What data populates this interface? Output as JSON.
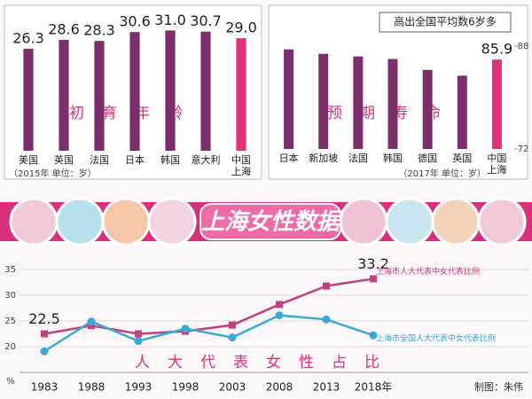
{
  "banner": "上海女性数据",
  "credit": "制图：朱伟",
  "chart_data": [
    {
      "type": "bar",
      "title": "初育年龄",
      "note": "（2015年 单位：岁）",
      "categories": [
        "美国",
        "英国",
        "法国",
        "日本",
        "韩国",
        "意大利",
        "中国\n上海"
      ],
      "values": [
        26.3,
        28.6,
        28.3,
        30.6,
        31.0,
        30.7,
        29.0
      ],
      "value_labels": [
        "26.3",
        "28.6",
        "28.3",
        "30.6",
        "31.0",
        "30.7",
        "29.0"
      ],
      "colors": [
        "#7b2d6c",
        "#7b2d6c",
        "#7b2d6c",
        "#7b2d6c",
        "#7b2d6c",
        "#7b2d6c",
        "#e2307c"
      ],
      "ylim": [
        0,
        32
      ]
    },
    {
      "type": "bar",
      "title": "预期寿命",
      "note": "（2017年 单位：岁）",
      "annotation": "高出全国平均数6岁多",
      "categories": [
        "日本",
        "新加坡",
        "法国",
        "韩国",
        "德国",
        "英国",
        "中国\n上海"
      ],
      "values": [
        87.5,
        86.8,
        86.4,
        86.0,
        84.3,
        83.4,
        85.9
      ],
      "value_labels": [
        null,
        null,
        null,
        null,
        null,
        null,
        "85.9"
      ],
      "colors": [
        "#7b2d6c",
        "#7b2d6c",
        "#7b2d6c",
        "#7b2d6c",
        "#7b2d6c",
        "#7b2d6c",
        "#e2307c"
      ],
      "ylim": [
        72,
        88
      ],
      "yticks": [
        72,
        88
      ]
    },
    {
      "type": "line",
      "title": "人大代表女性占比",
      "ylabel": "%",
      "categories": [
        "1983",
        "1988",
        "1993",
        "1998",
        "2003",
        "2008",
        "2013",
        "2018年"
      ],
      "series": [
        {
          "name": "上海市人大代表中女代表比例",
          "color": "#c2407e",
          "marker": "square",
          "values": [
            22.5,
            24.1,
            22.5,
            23.0,
            24.2,
            28.2,
            31.8,
            33.2
          ],
          "value_labels": [
            "22.5",
            null,
            null,
            null,
            null,
            null,
            null,
            "33.2"
          ]
        },
        {
          "name": "上海市全国人大代表中女代表比例",
          "color": "#3aa9d4",
          "marker": "circle",
          "values": [
            19.1,
            24.9,
            21.1,
            23.5,
            21.8,
            26.1,
            25.3,
            22.2
          ]
        }
      ],
      "ylim": [
        15,
        35
      ],
      "yticks": [
        20,
        25,
        30,
        35
      ],
      "grid": true
    }
  ]
}
